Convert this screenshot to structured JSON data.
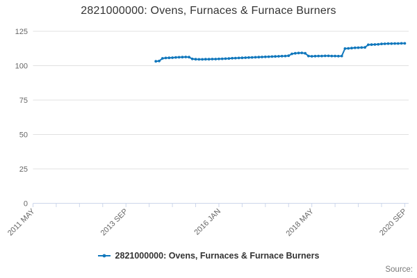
{
  "chart_data": {
    "type": "line",
    "title": "2821000000: Ovens, Furnaces & Furnace Burners",
    "ylabel": "",
    "xlabel": "",
    "ylim": [
      0,
      125
    ],
    "y_ticks": [
      0,
      25,
      50,
      75,
      100,
      125
    ],
    "grid": true,
    "legend_position": "bottom",
    "x_axis": {
      "start_label": "2011 MAY",
      "tick_count": 17,
      "months_per_tick": 7,
      "label_every_n_ticks": 4,
      "labels": [
        "2011 MAY",
        "2013 SEP",
        "2016 JAN",
        "2018 MAY",
        "2020 SEP"
      ]
    },
    "series": [
      {
        "name": "2821000000: Ovens, Furnaces & Furnace Burners",
        "color": "#1077bc",
        "marker": "circle",
        "frequency": "monthly",
        "first_point": "2014 JUN",
        "last_point": "2020 SEP",
        "start_offset_months": 37,
        "values": [
          103.2,
          103.4,
          105.3,
          105.6,
          105.7,
          105.8,
          106.0,
          106.1,
          106.2,
          106.3,
          106.2,
          104.9,
          104.7,
          104.6,
          104.6,
          104.7,
          104.7,
          104.8,
          104.8,
          104.9,
          105.0,
          105.1,
          105.2,
          105.4,
          105.5,
          105.6,
          105.7,
          105.8,
          105.9,
          106.0,
          106.1,
          106.2,
          106.3,
          106.4,
          106.5,
          106.6,
          106.7,
          106.8,
          106.9,
          107.0,
          107.2,
          108.6,
          109.0,
          109.2,
          109.3,
          109.0,
          107.0,
          106.8,
          106.9,
          107.0,
          107.0,
          107.1,
          107.1,
          107.0,
          107.0,
          106.9,
          107.0,
          112.4,
          112.6,
          112.8,
          113.0,
          113.1,
          113.2,
          113.3,
          115.2,
          115.3,
          115.4,
          115.5,
          115.8,
          115.9,
          116.0,
          116.0,
          116.1,
          116.1,
          116.2,
          116.2
        ]
      }
    ],
    "credits": "Source:"
  },
  "colors": {
    "accent": "#1077bc",
    "axis_line": "#ccd6eb",
    "gridline": "#e0e0e0",
    "tick_label": "#666666",
    "title": "#333333",
    "legend_text": "#333333",
    "credits_text": "#777777",
    "background": "#ffffff"
  }
}
